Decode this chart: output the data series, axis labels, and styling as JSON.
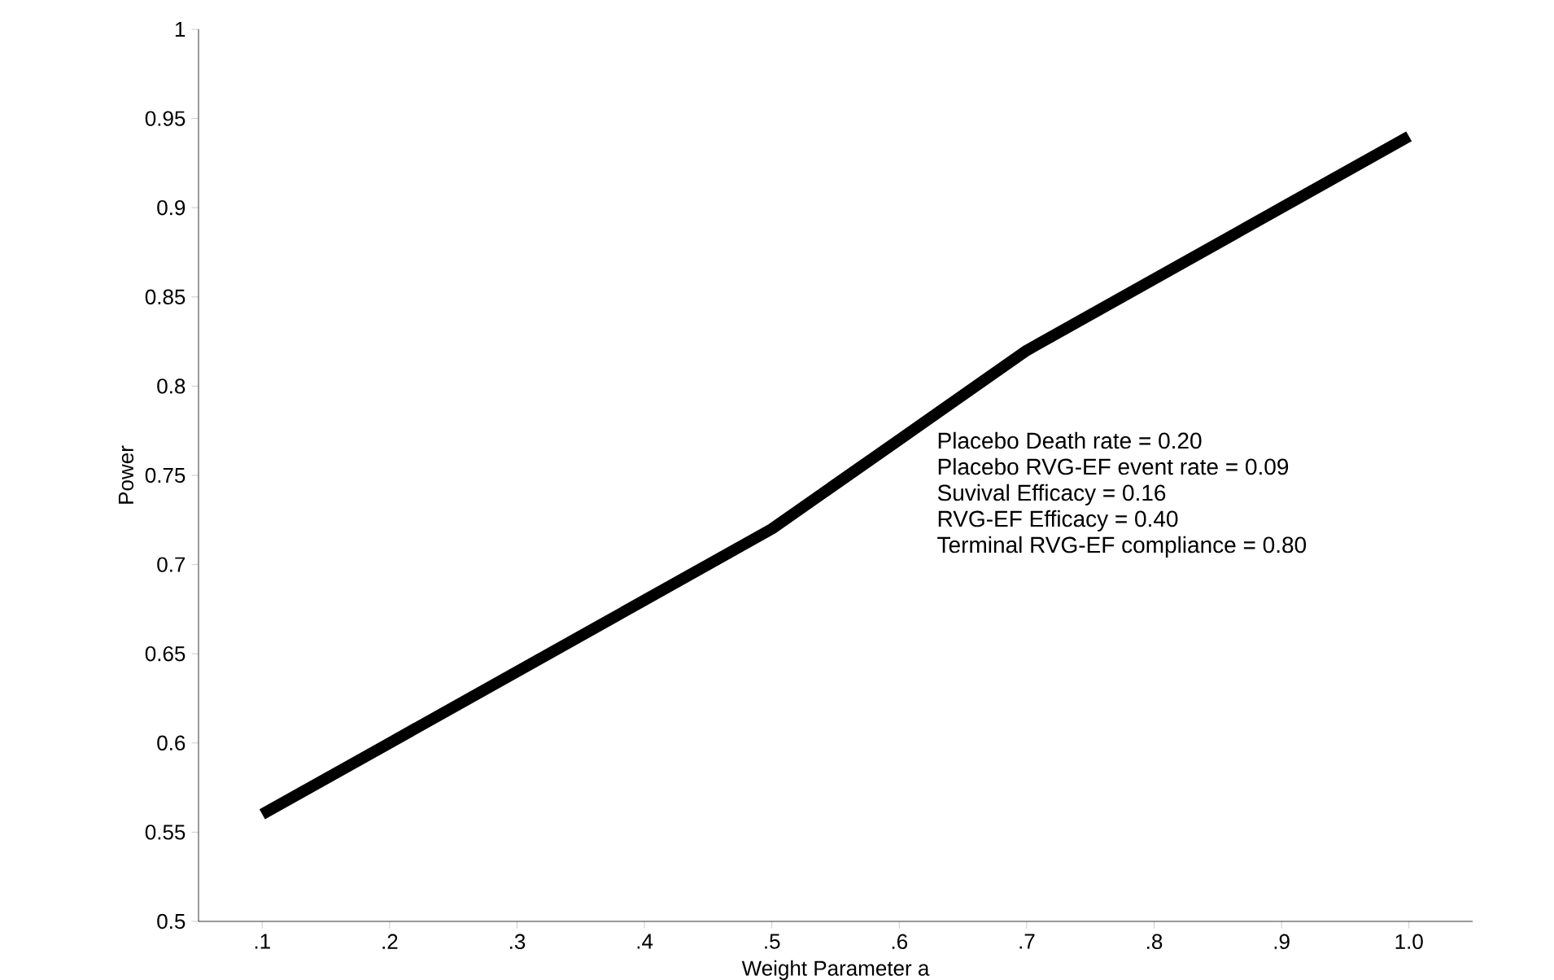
{
  "chart_data": {
    "type": "line",
    "xlabel": "Weight Parameter a",
    "ylabel": "Power",
    "categories": [
      ".1",
      ".2",
      ".3",
      ".4",
      ".5",
      ".6",
      ".7",
      ".8",
      ".9",
      "1.0"
    ],
    "series": [
      {
        "color": "#000000",
        "values": [
          0.56,
          0.6,
          0.64,
          0.68,
          0.72,
          0.77,
          0.82,
          0.86,
          0.9,
          0.94
        ]
      }
    ],
    "ylim": [
      0.5,
      1
    ],
    "yticks": [
      0.5,
      0.55,
      0.6,
      0.65,
      0.7,
      0.75,
      0.8,
      0.85,
      0.9,
      0.95,
      1
    ],
    "marker": "none",
    "line_style": "solid",
    "grid": false,
    "annotations": [
      "Placebo Death rate = 0.20",
      "Placebo RVG-EF event rate = 0.09",
      "Suvival Efficacy = 0.16",
      "RVG-EF Efficacy = 0.40",
      "Terminal RVG-EF compliance = 0.80"
    ]
  }
}
